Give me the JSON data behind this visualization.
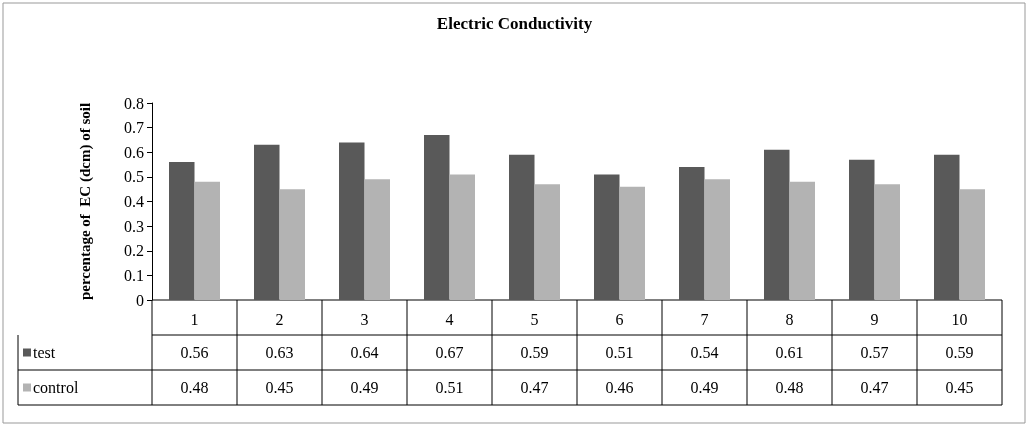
{
  "chart_data": {
    "type": "bar",
    "title": "Electric Conductivity",
    "ylabel": "percentage of  EC (dcm) of soil",
    "categories": [
      "1",
      "2",
      "3",
      "4",
      "5",
      "6",
      "7",
      "8",
      "9",
      "10"
    ],
    "series": [
      {
        "name": "test",
        "color": "#595959",
        "values": [
          0.56,
          0.63,
          0.64,
          0.67,
          0.59,
          0.51,
          0.54,
          0.61,
          0.57,
          0.59
        ]
      },
      {
        "name": "control",
        "color": "#b3b3b3",
        "values": [
          0.48,
          0.45,
          0.49,
          0.51,
          0.47,
          0.46,
          0.49,
          0.48,
          0.47,
          0.45
        ]
      }
    ],
    "ylim": [
      0,
      0.8
    ],
    "yticks": [
      0,
      0.1,
      0.2,
      0.3,
      0.4,
      0.5,
      0.6,
      0.7,
      0.8
    ],
    "grid": false,
    "legend": "bottom",
    "data_labels": true
  }
}
